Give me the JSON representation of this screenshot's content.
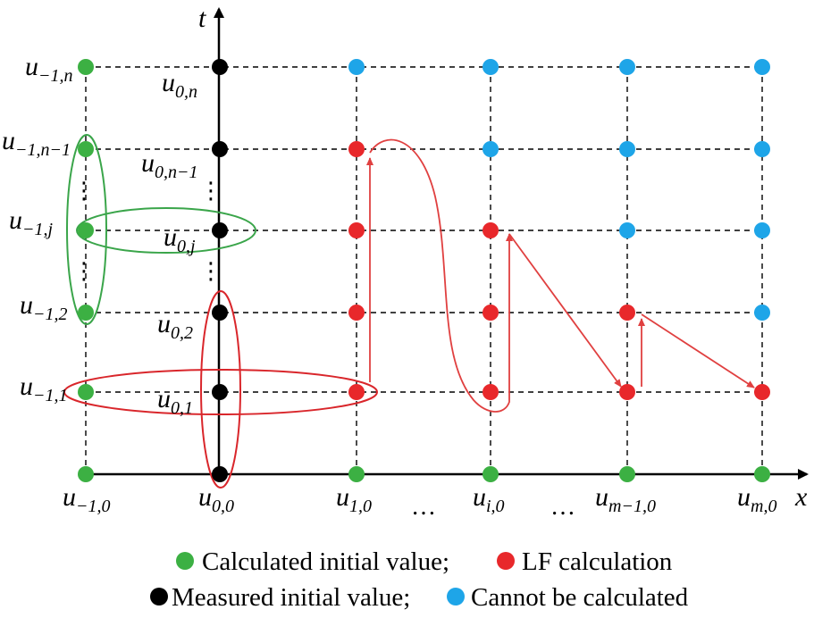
{
  "axes": {
    "x_label": "x",
    "t_label": "t"
  },
  "colors": {
    "green": "#3cb043",
    "black": "#000000",
    "blue": "#1ea5e8",
    "red": "#e8282b",
    "ellipse_green": "#3aa54a",
    "ellipse_red": "#d9262b",
    "arrow_red": "#e04040"
  },
  "row_labels": [
    {
      "base": "u",
      "sub": "−1,n"
    },
    {
      "base": "u",
      "sub": "−1,n−1"
    },
    {
      "base": "u",
      "sub": "−1,j"
    },
    {
      "base": "u",
      "sub": "−1,2"
    },
    {
      "base": "u",
      "sub": "−1,1"
    }
  ],
  "col0_labels": [
    {
      "base": "u",
      "sub": "0,n"
    },
    {
      "base": "u",
      "sub": "0,n−1"
    },
    {
      "base": "u",
      "sub": "0,j"
    },
    {
      "base": "u",
      "sub": "0,2"
    },
    {
      "base": "u",
      "sub": "0,1"
    }
  ],
  "bottom_labels": [
    {
      "base": "u",
      "sub": "−1,0"
    },
    {
      "base": "u",
      "sub": "0,0"
    },
    {
      "base": "u",
      "sub": "1,0"
    },
    {
      "base": "u",
      "sub": "i,0"
    },
    {
      "base": "u",
      "sub": "m−1,0"
    },
    {
      "base": "u",
      "sub": "m,0"
    }
  ],
  "ellipsis": "…",
  "vdots": "⋮",
  "legend": [
    {
      "color": "green",
      "text": "Calculated initial value;"
    },
    {
      "color": "red",
      "text": "LF calculation"
    },
    {
      "color": "black",
      "text": "Measured initial value;"
    },
    {
      "color": "blue",
      "text": "Cannot be calculated"
    }
  ],
  "grid_points": [
    [
      "green",
      "black",
      "blue",
      "blue",
      "blue",
      "blue"
    ],
    [
      "green",
      "black",
      "red",
      "blue",
      "blue",
      "blue"
    ],
    [
      "green",
      "black",
      "red",
      "red",
      "blue",
      "blue"
    ],
    [
      "green",
      "black",
      "red",
      "red",
      "red",
      "blue"
    ],
    [
      "green",
      "black",
      "red",
      "red",
      "red",
      "red"
    ],
    [
      "green",
      "black",
      "green",
      "green",
      "green",
      "green"
    ]
  ]
}
